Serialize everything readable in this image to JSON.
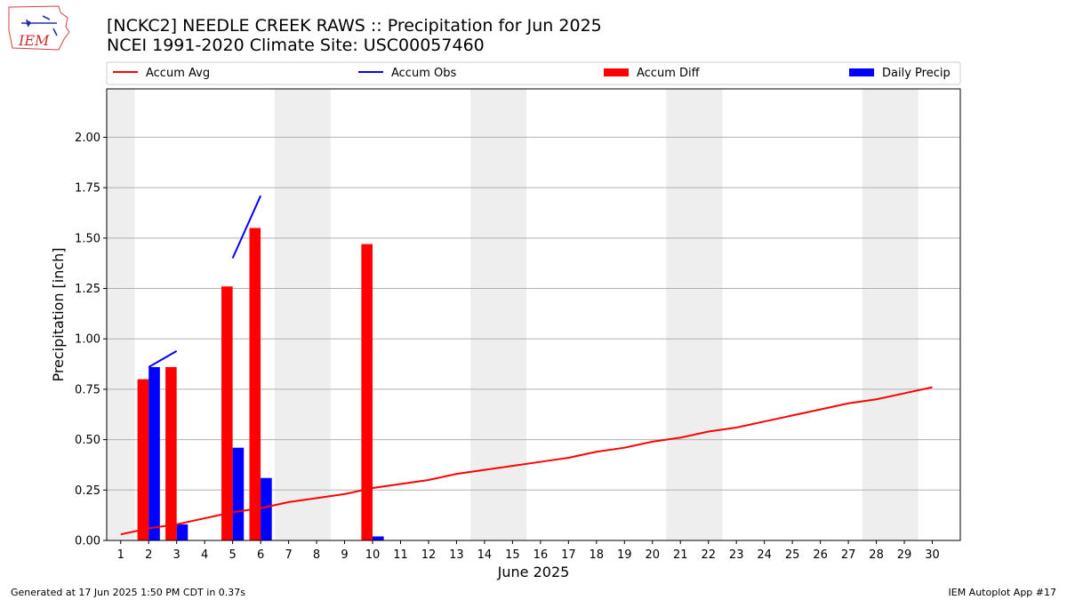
{
  "header": {
    "title_line1": "[NCKC2] NEEDLE CREEK RAWS :: Precipitation for Jun 2025",
    "title_line2": "NCEI 1991-2020 Climate Site: USC00057460",
    "logo_text": "IEM"
  },
  "footer": {
    "left": "Generated at 17 Jun 2025 1:50 PM CDT in 0.37s",
    "right": "IEM Autoplot App #17"
  },
  "chart_data": {
    "type": "bar",
    "xlabel": "June 2025",
    "ylabel": "Precipitation [inch]",
    "xlim": [
      0.5,
      31.0
    ],
    "ylim": [
      0,
      2.24
    ],
    "yticks": [
      0.0,
      0.25,
      0.5,
      0.75,
      1.0,
      1.25,
      1.5,
      1.75,
      2.0
    ],
    "ytick_labels": [
      "0.00",
      "0.25",
      "0.50",
      "0.75",
      "1.00",
      "1.25",
      "1.50",
      "1.75",
      "2.00"
    ],
    "xticks": [
      1,
      2,
      3,
      4,
      5,
      6,
      7,
      8,
      9,
      10,
      11,
      12,
      13,
      14,
      15,
      16,
      17,
      18,
      19,
      20,
      21,
      22,
      23,
      24,
      25,
      26,
      27,
      28,
      29,
      30
    ],
    "grid": "horizontal",
    "legend_placement": "top",
    "weekend_shading": [
      [
        0.5,
        1.5
      ],
      [
        6.5,
        8.5
      ],
      [
        13.5,
        15.5
      ],
      [
        20.5,
        22.5
      ],
      [
        27.5,
        29.5
      ]
    ],
    "weekend_color": "#eeeeee",
    "legend": [
      {
        "label": "Accum Avg",
        "kind": "line",
        "color": "#ff0000"
      },
      {
        "label": "Accum Obs",
        "kind": "line",
        "color": "#0000ff"
      },
      {
        "label": "Accum Diff",
        "kind": "bar",
        "color": "#ff0000"
      },
      {
        "label": "Daily Precip",
        "kind": "bar",
        "color": "#0000ff"
      }
    ],
    "series": [
      {
        "name": "Accum Avg",
        "kind": "line",
        "color": "#ff0000",
        "x": [
          1,
          2,
          3,
          4,
          5,
          6,
          7,
          8,
          9,
          10,
          11,
          12,
          13,
          14,
          15,
          16,
          17,
          18,
          19,
          20,
          21,
          22,
          23,
          24,
          25,
          26,
          27,
          28,
          29,
          30
        ],
        "values": [
          0.03,
          0.06,
          0.08,
          0.11,
          0.14,
          0.16,
          0.19,
          0.21,
          0.23,
          0.26,
          0.28,
          0.3,
          0.33,
          0.35,
          0.37,
          0.39,
          0.41,
          0.44,
          0.46,
          0.49,
          0.51,
          0.54,
          0.56,
          0.59,
          0.62,
          0.65,
          0.68,
          0.7,
          0.73,
          0.76
        ]
      },
      {
        "name": "Accum Obs",
        "kind": "segments",
        "color": "#0000ff",
        "segments": [
          [
            [
              2,
              0.86
            ],
            [
              3,
              0.94
            ]
          ],
          [
            [
              5,
              1.4
            ],
            [
              6,
              1.71
            ]
          ]
        ]
      },
      {
        "name": "Accum Diff",
        "kind": "bar",
        "color": "#ff0000",
        "offset": -0.2,
        "x": [
          2,
          3,
          5,
          6,
          10
        ],
        "values": [
          0.8,
          0.86,
          1.26,
          1.55,
          1.47
        ]
      },
      {
        "name": "Daily Precip",
        "kind": "bar",
        "color": "#0000ff",
        "offset": 0.2,
        "x": [
          2,
          3,
          5,
          6,
          10
        ],
        "values": [
          0.86,
          0.08,
          0.46,
          0.31,
          0.02
        ]
      }
    ]
  }
}
